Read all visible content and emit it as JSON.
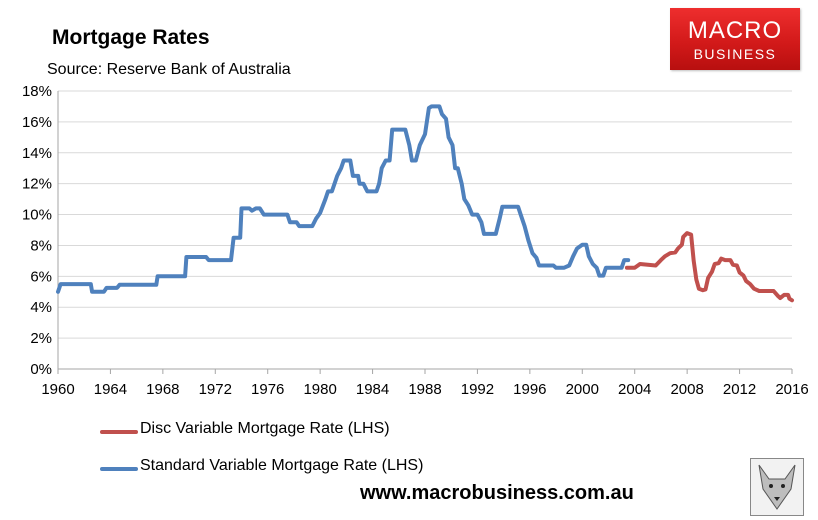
{
  "header": {
    "title": "Mortgage Rates",
    "subtitle": "Source: Reserve Bank of Australia"
  },
  "logo": {
    "line1": "MACRO",
    "line2": "BUSINESS"
  },
  "footer": {
    "url": "www.macrobusiness.com.au"
  },
  "colors": {
    "standard": "#4f81bd",
    "disc": "#c0504d",
    "plot_bg": "#ffffff",
    "grid": "#d9d9d9"
  },
  "chart_data": {
    "type": "line",
    "title": "Mortgage Rates",
    "xlabel": "",
    "ylabel": "",
    "xlim": [
      1960,
      2016
    ],
    "ylim": [
      0,
      18
    ],
    "x_ticks": [
      "1960",
      "1964",
      "1968",
      "1972",
      "1976",
      "1980",
      "1984",
      "1988",
      "1992",
      "1996",
      "2000",
      "2004",
      "2008",
      "2012",
      "2016"
    ],
    "y_ticks": [
      "0%",
      "2%",
      "4%",
      "6%",
      "8%",
      "10%",
      "12%",
      "14%",
      "16%",
      "18%"
    ],
    "grid": "horizontal",
    "legend_position": "bottom-left",
    "series": [
      {
        "name": "Disc Variable Mortgage Rate (LHS)",
        "color": "#c0504d",
        "points": [
          [
            2003.4,
            6.55
          ],
          [
            2004.0,
            6.55
          ],
          [
            2004.4,
            6.8
          ],
          [
            2005.0,
            6.75
          ],
          [
            2005.6,
            6.7
          ],
          [
            2006.0,
            7.05
          ],
          [
            2006.3,
            7.3
          ],
          [
            2006.7,
            7.5
          ],
          [
            2007.1,
            7.55
          ],
          [
            2007.3,
            7.8
          ],
          [
            2007.6,
            8.05
          ],
          [
            2007.7,
            8.55
          ],
          [
            2008.0,
            8.8
          ],
          [
            2008.3,
            8.7
          ],
          [
            2008.5,
            7.0
          ],
          [
            2008.7,
            5.8
          ],
          [
            2008.9,
            5.2
          ],
          [
            2009.2,
            5.1
          ],
          [
            2009.4,
            5.15
          ],
          [
            2009.6,
            5.9
          ],
          [
            2009.9,
            6.3
          ],
          [
            2010.1,
            6.8
          ],
          [
            2010.4,
            6.85
          ],
          [
            2010.6,
            7.15
          ],
          [
            2010.9,
            7.05
          ],
          [
            2011.3,
            7.05
          ],
          [
            2011.5,
            6.75
          ],
          [
            2011.8,
            6.7
          ],
          [
            2012.0,
            6.25
          ],
          [
            2012.3,
            6.05
          ],
          [
            2012.5,
            5.7
          ],
          [
            2012.8,
            5.5
          ],
          [
            2013.1,
            5.2
          ],
          [
            2013.5,
            5.05
          ],
          [
            2014.0,
            5.05
          ],
          [
            2014.6,
            5.05
          ],
          [
            2014.9,
            4.75
          ],
          [
            2015.1,
            4.6
          ],
          [
            2015.4,
            4.8
          ],
          [
            2015.7,
            4.8
          ],
          [
            2015.8,
            4.55
          ],
          [
            2016.0,
            4.45
          ]
        ]
      },
      {
        "name": "Standard Variable Mortgage Rate (LHS)",
        "color": "#4f81bd",
        "points": [
          [
            1960.0,
            5.0
          ],
          [
            1960.2,
            5.5
          ],
          [
            1962.5,
            5.5
          ],
          [
            1962.6,
            5.0
          ],
          [
            1963.5,
            5.0
          ],
          [
            1963.7,
            5.25
          ],
          [
            1964.5,
            5.25
          ],
          [
            1964.7,
            5.45
          ],
          [
            1967.5,
            5.45
          ],
          [
            1967.6,
            6.0
          ],
          [
            1969.7,
            6.0
          ],
          [
            1969.8,
            7.25
          ],
          [
            1971.3,
            7.25
          ],
          [
            1971.5,
            7.05
          ],
          [
            1973.2,
            7.05
          ],
          [
            1973.4,
            8.5
          ],
          [
            1973.9,
            8.5
          ],
          [
            1974.0,
            10.4
          ],
          [
            1974.6,
            10.4
          ],
          [
            1974.8,
            10.25
          ],
          [
            1975.1,
            10.4
          ],
          [
            1975.4,
            10.4
          ],
          [
            1975.7,
            10.0
          ],
          [
            1977.5,
            10.0
          ],
          [
            1977.7,
            9.5
          ],
          [
            1978.2,
            9.5
          ],
          [
            1978.4,
            9.25
          ],
          [
            1979.4,
            9.25
          ],
          [
            1979.7,
            9.75
          ],
          [
            1980.0,
            10.1
          ],
          [
            1980.4,
            11.0
          ],
          [
            1980.6,
            11.5
          ],
          [
            1980.9,
            11.5
          ],
          [
            1981.3,
            12.5
          ],
          [
            1981.6,
            13.0
          ],
          [
            1981.8,
            13.5
          ],
          [
            1982.3,
            13.5
          ],
          [
            1982.5,
            12.5
          ],
          [
            1982.9,
            12.5
          ],
          [
            1983.0,
            12.0
          ],
          [
            1983.3,
            12.0
          ],
          [
            1983.6,
            11.5
          ],
          [
            1984.3,
            11.5
          ],
          [
            1984.5,
            12.0
          ],
          [
            1984.7,
            13.0
          ],
          [
            1985.0,
            13.5
          ],
          [
            1985.3,
            13.5
          ],
          [
            1985.5,
            15.5
          ],
          [
            1986.5,
            15.5
          ],
          [
            1986.8,
            14.5
          ],
          [
            1987.0,
            13.5
          ],
          [
            1987.3,
            13.5
          ],
          [
            1987.6,
            14.5
          ],
          [
            1988.0,
            15.2
          ],
          [
            1988.3,
            16.9
          ],
          [
            1988.5,
            17.0
          ],
          [
            1989.1,
            17.0
          ],
          [
            1989.3,
            16.5
          ],
          [
            1989.6,
            16.2
          ],
          [
            1989.8,
            15.0
          ],
          [
            1990.1,
            14.5
          ],
          [
            1990.3,
            13.0
          ],
          [
            1990.5,
            13.0
          ],
          [
            1990.8,
            12.0
          ],
          [
            1991.0,
            11.0
          ],
          [
            1991.3,
            10.6
          ],
          [
            1991.6,
            10.0
          ],
          [
            1992.0,
            10.0
          ],
          [
            1992.3,
            9.5
          ],
          [
            1992.5,
            8.75
          ],
          [
            1993.4,
            8.75
          ],
          [
            1993.7,
            9.75
          ],
          [
            1993.9,
            10.5
          ],
          [
            1995.1,
            10.5
          ],
          [
            1995.3,
            10.0
          ],
          [
            1995.6,
            9.25
          ],
          [
            1995.9,
            8.3
          ],
          [
            1996.2,
            7.5
          ],
          [
            1996.5,
            7.2
          ],
          [
            1996.7,
            6.7
          ],
          [
            1997.8,
            6.7
          ],
          [
            1998.0,
            6.55
          ],
          [
            1998.6,
            6.55
          ],
          [
            1999.0,
            6.7
          ],
          [
            1999.3,
            7.3
          ],
          [
            1999.6,
            7.8
          ],
          [
            2000.0,
            8.05
          ],
          [
            2000.3,
            8.05
          ],
          [
            2000.5,
            7.3
          ],
          [
            2000.8,
            6.8
          ],
          [
            2001.1,
            6.55
          ],
          [
            2001.3,
            6.05
          ],
          [
            2001.6,
            6.05
          ],
          [
            2001.8,
            6.55
          ],
          [
            2003.0,
            6.55
          ],
          [
            2003.2,
            7.05
          ],
          [
            2003.5,
            7.05
          ]
        ]
      }
    ]
  }
}
